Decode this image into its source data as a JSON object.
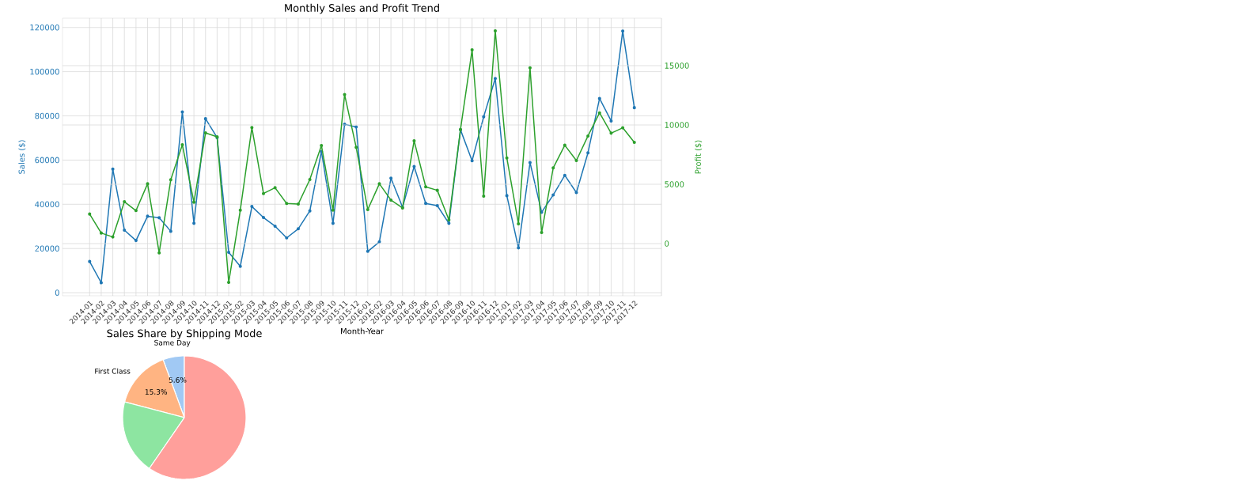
{
  "chart_data": [
    {
      "type": "line",
      "title": "Monthly Sales and Profit Trend",
      "xlabel": "Month-Year",
      "ylabel": "Sales ($)",
      "y2label": "Profit ($)",
      "categories": [
        "2014-01",
        "2014-02",
        "2014-03",
        "2014-04",
        "2014-05",
        "2014-06",
        "2014-07",
        "2014-08",
        "2014-09",
        "2014-10",
        "2014-11",
        "2014-12",
        "2015-01",
        "2015-02",
        "2015-03",
        "2015-04",
        "2015-05",
        "2015-06",
        "2015-07",
        "2015-08",
        "2015-09",
        "2015-10",
        "2015-11",
        "2015-12",
        "2016-01",
        "2016-02",
        "2016-03",
        "2016-04",
        "2016-05",
        "2016-06",
        "2016-07",
        "2016-08",
        "2016-09",
        "2016-10",
        "2016-11",
        "2016-12",
        "2017-01",
        "2017-02",
        "2017-03",
        "2017-04",
        "2017-05",
        "2017-06",
        "2017-07",
        "2017-08",
        "2017-09",
        "2017-10",
        "2017-11",
        "2017-12"
      ],
      "series": [
        {
          "color": "#1f77b4",
          "values": [
            14100,
            4500,
            55900,
            28300,
            23600,
            34600,
            33900,
            27800,
            81800,
            31400,
            78700,
            70200,
            18300,
            11900,
            39000,
            34000,
            30100,
            24800,
            28900,
            37000,
            63900,
            31400,
            76200,
            75000,
            18700,
            23000,
            51800,
            38700,
            57100,
            40400,
            39400,
            31400,
            73700,
            59700,
            79600,
            96900,
            43900,
            20300,
            58900,
            36400,
            44200,
            53100,
            45300,
            63300,
            87900,
            77700,
            118400,
            83700
          ]
        },
        {
          "color": "#2ca02c",
          "axis": "y2",
          "values": [
            2490,
            890,
            560,
            3530,
            2780,
            5040,
            -780,
            5380,
            8330,
            3490,
            9330,
            9000,
            -3270,
            2820,
            9780,
            4220,
            4710,
            3380,
            3330,
            5400,
            8270,
            2820,
            12560,
            8110,
            2870,
            5040,
            3670,
            3000,
            8670,
            4780,
            4490,
            2000,
            9620,
            16330,
            4000,
            17930,
            7220,
            1670,
            14820,
            930,
            6380,
            8290,
            7000,
            9070,
            11020,
            9310,
            9760,
            8530
          ]
        }
      ],
      "ylim": [
        -1400,
        124200
      ],
      "yticks": [
        0,
        20000,
        40000,
        60000,
        80000,
        100000,
        120000
      ],
      "y2lim": [
        -4400,
        19000
      ],
      "y2ticks": [
        0,
        5000,
        10000,
        15000
      ],
      "grid": true,
      "marker": "circle"
    },
    {
      "type": "pie",
      "title": "Sales Share by Shipping Mode",
      "categories": [
        "Same Day",
        "First Class",
        null,
        null
      ],
      "values": [
        5.6,
        15.3,
        19.5,
        59.6
      ],
      "colors": [
        "#a1c9f4",
        "#ffb482",
        "#8de5a1",
        "#ff9f9b"
      ],
      "value_labels": [
        "5.6%",
        "15.3%",
        null,
        null
      ]
    }
  ]
}
